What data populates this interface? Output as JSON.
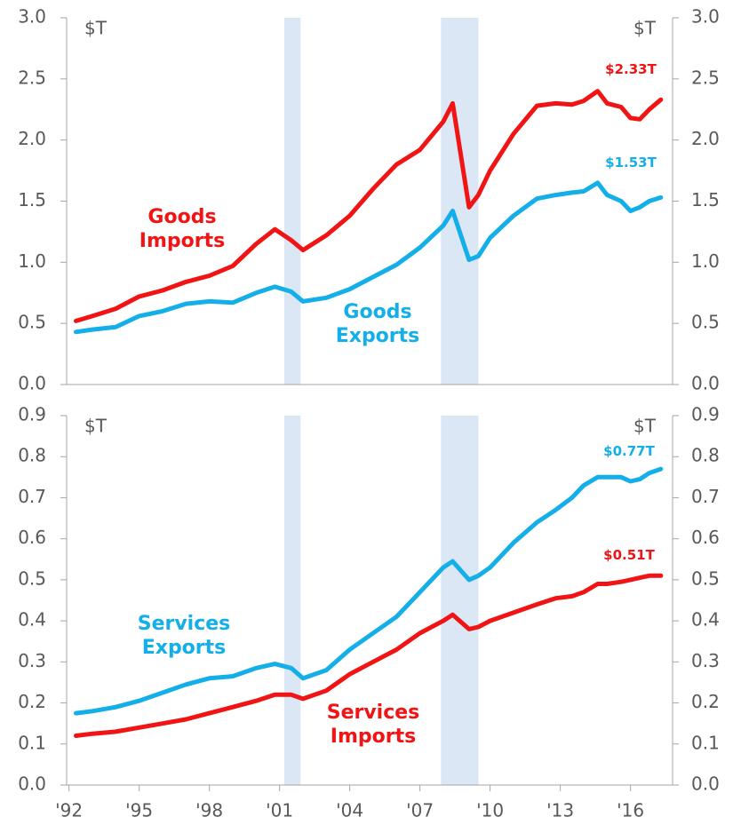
{
  "chart_data": [
    {
      "type": "line",
      "ylabel": "$T",
      "y2label": "$T",
      "x": [
        1992.3,
        1993,
        1994,
        1995,
        1996,
        1997,
        1998,
        1999,
        2000,
        2000.8,
        2001.5,
        2002,
        2003,
        2004,
        2005,
        2006,
        2007,
        2008,
        2008.4,
        2009.1,
        2009.5,
        2010,
        2011,
        2012,
        2012.8,
        2013.5,
        2014,
        2014.6,
        2015,
        2015.6,
        2016,
        2016.4,
        2016.8,
        2017.3
      ],
      "xlim": [
        1991.9,
        2017.8
      ],
      "ylim": [
        0,
        3
      ],
      "yticks": [
        {
          "value": 0,
          "label": "0.0"
        },
        0.5,
        {
          "value": 1,
          "label": "1.0"
        },
        1.5,
        {
          "value": 2,
          "label": "2.0"
        },
        2.5,
        {
          "value": 3,
          "label": "3.0"
        }
      ],
      "recessions": [
        [
          2001.2,
          2001.9
        ],
        [
          2007.9,
          2009.5
        ]
      ],
      "series": [
        {
          "name": "Goods Imports",
          "color": "#f01414",
          "values": [
            0.52,
            0.56,
            0.62,
            0.72,
            0.77,
            0.84,
            0.89,
            0.97,
            1.15,
            1.27,
            1.18,
            1.1,
            1.22,
            1.38,
            1.6,
            1.8,
            1.92,
            2.15,
            2.3,
            1.45,
            1.55,
            1.75,
            2.05,
            2.28,
            2.3,
            2.29,
            2.32,
            2.4,
            2.3,
            2.27,
            2.18,
            2.17,
            2.25,
            2.33
          ],
          "end_label": "$2.33T"
        },
        {
          "name": "Goods Exports",
          "color": "#14aee8",
          "values": [
            0.43,
            0.45,
            0.47,
            0.56,
            0.6,
            0.66,
            0.68,
            0.67,
            0.75,
            0.8,
            0.76,
            0.68,
            0.71,
            0.78,
            0.88,
            0.98,
            1.12,
            1.3,
            1.42,
            1.02,
            1.05,
            1.2,
            1.38,
            1.52,
            1.55,
            1.57,
            1.58,
            1.65,
            1.55,
            1.5,
            1.42,
            1.45,
            1.5,
            1.53
          ],
          "end_label": "$1.53T"
        }
      ]
    },
    {
      "type": "line",
      "ylabel": "$T",
      "y2label": "$T",
      "x": [
        1992.3,
        1993,
        1994,
        1995,
        1996,
        1997,
        1998,
        1999,
        2000,
        2000.8,
        2001.5,
        2002,
        2003,
        2004,
        2005,
        2006,
        2007,
        2008,
        2008.4,
        2009.1,
        2009.5,
        2010,
        2011,
        2012,
        2012.8,
        2013.5,
        2014,
        2014.6,
        2015,
        2015.6,
        2016,
        2016.4,
        2016.8,
        2017.3
      ],
      "xlim": [
        1991.9,
        2017.8
      ],
      "xticks": [
        {
          "value": 1992,
          "label": "'92"
        },
        {
          "value": 1995,
          "label": "'95"
        },
        {
          "value": 1998,
          "label": "'98"
        },
        {
          "value": 2001,
          "label": "'01"
        },
        {
          "value": 2004,
          "label": "'04"
        },
        {
          "value": 2007,
          "label": "'07"
        },
        {
          "value": 2010,
          "label": "'10"
        },
        {
          "value": 2013,
          "label": "'13"
        },
        {
          "value": 2016,
          "label": "'16"
        }
      ],
      "ylim": [
        0,
        0.9
      ],
      "yticks": [
        {
          "value": 0,
          "label": "0.0"
        },
        0.1,
        0.2,
        0.3,
        0.4,
        0.5,
        0.6,
        0.7,
        0.8,
        0.9
      ],
      "recessions": [
        [
          2001.2,
          2001.9
        ],
        [
          2007.9,
          2009.5
        ]
      ],
      "series": [
        {
          "name": "Services Exports",
          "color": "#14aee8",
          "values": [
            0.175,
            0.18,
            0.19,
            0.205,
            0.225,
            0.245,
            0.26,
            0.265,
            0.285,
            0.295,
            0.285,
            0.26,
            0.28,
            0.33,
            0.37,
            0.41,
            0.47,
            0.53,
            0.545,
            0.5,
            0.51,
            0.53,
            0.59,
            0.64,
            0.67,
            0.7,
            0.73,
            0.75,
            0.75,
            0.75,
            0.74,
            0.745,
            0.76,
            0.77
          ],
          "end_label": "$0.77T"
        },
        {
          "name": "Services Imports",
          "color": "#f01414",
          "values": [
            0.12,
            0.125,
            0.13,
            0.14,
            0.15,
            0.16,
            0.175,
            0.19,
            0.205,
            0.22,
            0.22,
            0.21,
            0.23,
            0.27,
            0.3,
            0.33,
            0.37,
            0.4,
            0.415,
            0.38,
            0.385,
            0.4,
            0.42,
            0.44,
            0.455,
            0.46,
            0.47,
            0.49,
            0.49,
            0.495,
            0.5,
            0.505,
            0.51,
            0.51
          ],
          "end_label": "$0.51T"
        }
      ]
    }
  ]
}
